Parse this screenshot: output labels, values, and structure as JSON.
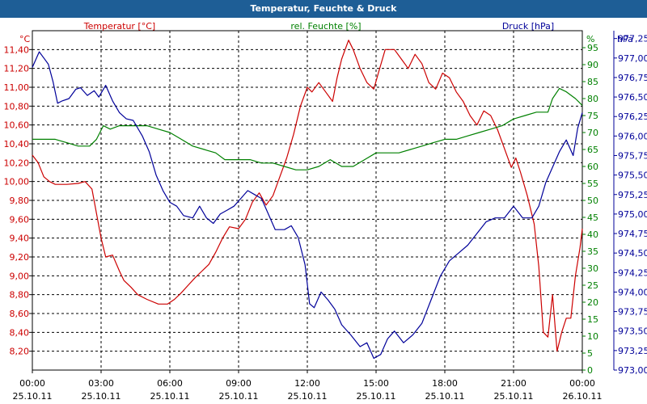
{
  "window_title": "Temperatur, Feuchte & Druck",
  "colors": {
    "title_bg": "#1e5e96",
    "temperature": "#cc0000",
    "humidity": "#008000",
    "pressure": "#000099"
  },
  "chart_data": {
    "type": "line",
    "title": "Temperatur, Feuchte & Druck",
    "x_labels": [
      {
        "time": "00:00",
        "date": "25.10.11"
      },
      {
        "time": "03:00",
        "date": "25.10.11"
      },
      {
        "time": "06:00",
        "date": "25.10.11"
      },
      {
        "time": "09:00",
        "date": "25.10.11"
      },
      {
        "time": "12:00",
        "date": "25.10.11"
      },
      {
        "time": "15:00",
        "date": "25.10.11"
      },
      {
        "time": "18:00",
        "date": "25.10.11"
      },
      {
        "time": "21:00",
        "date": "25.10.11"
      },
      {
        "time": "00:00",
        "date": "26.10.11"
      }
    ],
    "xlim_hours": [
      0,
      24
    ],
    "axes": {
      "temperature": {
        "label": "Temperatur [°C]",
        "unit": "°C",
        "ylim": [
          8.0,
          11.6
        ],
        "ticks": [
          "8,20",
          "8,40",
          "8,60",
          "8,80",
          "9,00",
          "9,20",
          "9,40",
          "9,60",
          "9,80",
          "10,00",
          "10,20",
          "10,40",
          "10,60",
          "10,80",
          "11,00",
          "11,20",
          "11,40"
        ]
      },
      "humidity": {
        "label": "rel. Feuchte [%]",
        "unit": "%",
        "ylim": [
          0,
          100
        ],
        "ticks": [
          "0",
          "5",
          "10",
          "15",
          "20",
          "25",
          "30",
          "35",
          "40",
          "45",
          "50",
          "55",
          "60",
          "65",
          "70",
          "75",
          "80",
          "85",
          "90",
          "95"
        ]
      },
      "pressure": {
        "label": "Druck [hPa]",
        "unit": "hPa",
        "ylim": [
          973.0,
          977.35
        ],
        "ticks": [
          "973,00",
          "973,25",
          "973,50",
          "973,75",
          "974,00",
          "974,25",
          "974,50",
          "974,75",
          "975,00",
          "975,25",
          "975,50",
          "975,75",
          "976,00",
          "976,25",
          "976,50",
          "976,75",
          "977,00",
          "977,25"
        ]
      }
    },
    "series": [
      {
        "name": "Temperatur [°C]",
        "axis": "temperature",
        "color": "#cc0000",
        "points": [
          [
            0,
            10.28
          ],
          [
            0.25,
            10.2
          ],
          [
            0.5,
            10.05
          ],
          [
            0.75,
            10.0
          ],
          [
            1.0,
            9.97
          ],
          [
            1.5,
            9.97
          ],
          [
            2.0,
            9.98
          ],
          [
            2.3,
            10.0
          ],
          [
            2.6,
            9.92
          ],
          [
            3.0,
            9.4
          ],
          [
            3.2,
            9.2
          ],
          [
            3.5,
            9.22
          ],
          [
            3.8,
            9.05
          ],
          [
            4.0,
            8.95
          ],
          [
            4.3,
            8.88
          ],
          [
            4.6,
            8.8
          ],
          [
            5.0,
            8.75
          ],
          [
            5.5,
            8.7
          ],
          [
            5.9,
            8.7
          ],
          [
            6.2,
            8.75
          ],
          [
            6.5,
            8.82
          ],
          [
            6.8,
            8.9
          ],
          [
            7.1,
            8.98
          ],
          [
            7.4,
            9.05
          ],
          [
            7.7,
            9.12
          ],
          [
            8.0,
            9.25
          ],
          [
            8.3,
            9.4
          ],
          [
            8.6,
            9.52
          ],
          [
            9.0,
            9.5
          ],
          [
            9.3,
            9.6
          ],
          [
            9.6,
            9.78
          ],
          [
            9.9,
            9.88
          ],
          [
            10.2,
            9.75
          ],
          [
            10.5,
            9.85
          ],
          [
            10.8,
            10.05
          ],
          [
            11.1,
            10.25
          ],
          [
            11.4,
            10.5
          ],
          [
            11.7,
            10.8
          ],
          [
            12.0,
            11.0
          ],
          [
            12.2,
            10.95
          ],
          [
            12.5,
            11.05
          ],
          [
            12.8,
            10.95
          ],
          [
            13.1,
            10.85
          ],
          [
            13.3,
            11.1
          ],
          [
            13.5,
            11.3
          ],
          [
            13.8,
            11.5
          ],
          [
            14.0,
            11.4
          ],
          [
            14.3,
            11.2
          ],
          [
            14.6,
            11.05
          ],
          [
            14.9,
            10.98
          ],
          [
            15.1,
            11.15
          ],
          [
            15.4,
            11.4
          ],
          [
            15.8,
            11.4
          ],
          [
            16.1,
            11.3
          ],
          [
            16.4,
            11.2
          ],
          [
            16.7,
            11.35
          ],
          [
            17.0,
            11.25
          ],
          [
            17.3,
            11.05
          ],
          [
            17.6,
            10.98
          ],
          [
            17.9,
            11.15
          ],
          [
            18.2,
            11.1
          ],
          [
            18.5,
            10.95
          ],
          [
            18.8,
            10.85
          ],
          [
            19.1,
            10.7
          ],
          [
            19.4,
            10.6
          ],
          [
            19.7,
            10.75
          ],
          [
            20.0,
            10.7
          ],
          [
            20.3,
            10.55
          ],
          [
            20.6,
            10.35
          ],
          [
            20.9,
            10.15
          ],
          [
            21.1,
            10.25
          ],
          [
            21.3,
            10.1
          ],
          [
            21.6,
            9.85
          ],
          [
            21.9,
            9.55
          ],
          [
            22.1,
            9.1
          ],
          [
            22.3,
            8.4
          ],
          [
            22.5,
            8.35
          ],
          [
            22.7,
            8.8
          ],
          [
            22.9,
            8.2
          ],
          [
            23.1,
            8.4
          ],
          [
            23.3,
            8.55
          ],
          [
            23.5,
            8.55
          ],
          [
            23.7,
            9.0
          ],
          [
            23.9,
            9.3
          ],
          [
            24.0,
            9.5
          ]
        ]
      },
      {
        "name": "rel. Feuchte [%]",
        "axis": "humidity",
        "color": "#008000",
        "points": [
          [
            0,
            68
          ],
          [
            1.0,
            68
          ],
          [
            1.5,
            67
          ],
          [
            2.0,
            66
          ],
          [
            2.5,
            66
          ],
          [
            2.8,
            68
          ],
          [
            3.1,
            72
          ],
          [
            3.4,
            71
          ],
          [
            3.8,
            72
          ],
          [
            4.5,
            72
          ],
          [
            5.0,
            72
          ],
          [
            5.5,
            71
          ],
          [
            6.0,
            70
          ],
          [
            6.5,
            68
          ],
          [
            7.0,
            66
          ],
          [
            7.5,
            65
          ],
          [
            8.0,
            64
          ],
          [
            8.4,
            62
          ],
          [
            9.0,
            62
          ],
          [
            9.5,
            62
          ],
          [
            10.0,
            61
          ],
          [
            10.5,
            61
          ],
          [
            11.0,
            60
          ],
          [
            11.5,
            59
          ],
          [
            12.0,
            59
          ],
          [
            12.5,
            60
          ],
          [
            13.0,
            62
          ],
          [
            13.5,
            60
          ],
          [
            14.0,
            60
          ],
          [
            14.5,
            62
          ],
          [
            15.0,
            64
          ],
          [
            15.5,
            64
          ],
          [
            16.0,
            64
          ],
          [
            16.5,
            65
          ],
          [
            17.0,
            66
          ],
          [
            17.5,
            67
          ],
          [
            18.0,
            68
          ],
          [
            18.5,
            68
          ],
          [
            19.0,
            69
          ],
          [
            19.5,
            70
          ],
          [
            20.0,
            71
          ],
          [
            20.5,
            72
          ],
          [
            21.0,
            74
          ],
          [
            21.5,
            75
          ],
          [
            22.0,
            76
          ],
          [
            22.5,
            76
          ],
          [
            22.7,
            80
          ],
          [
            23.0,
            83
          ],
          [
            23.3,
            82
          ],
          [
            23.7,
            80
          ],
          [
            24.0,
            78
          ]
        ]
      },
      {
        "name": "Druck [hPa]",
        "axis": "pressure",
        "color": "#000099",
        "points": [
          [
            0,
            976.88
          ],
          [
            0.3,
            977.08
          ],
          [
            0.5,
            977.0
          ],
          [
            0.7,
            976.92
          ],
          [
            0.9,
            976.7
          ],
          [
            1.1,
            976.42
          ],
          [
            1.3,
            976.45
          ],
          [
            1.6,
            976.48
          ],
          [
            1.9,
            976.6
          ],
          [
            2.1,
            976.62
          ],
          [
            2.4,
            976.52
          ],
          [
            2.7,
            976.58
          ],
          [
            2.9,
            976.5
          ],
          [
            3.2,
            976.65
          ],
          [
            3.5,
            976.45
          ],
          [
            3.8,
            976.3
          ],
          [
            4.1,
            976.22
          ],
          [
            4.4,
            976.2
          ],
          [
            4.8,
            976.0
          ],
          [
            5.1,
            975.8
          ],
          [
            5.4,
            975.5
          ],
          [
            5.7,
            975.3
          ],
          [
            6.0,
            975.15
          ],
          [
            6.3,
            975.1
          ],
          [
            6.6,
            974.98
          ],
          [
            7.0,
            974.95
          ],
          [
            7.3,
            975.1
          ],
          [
            7.6,
            974.95
          ],
          [
            7.9,
            974.88
          ],
          [
            8.2,
            975.0
          ],
          [
            8.5,
            975.05
          ],
          [
            8.8,
            975.1
          ],
          [
            9.1,
            975.2
          ],
          [
            9.4,
            975.3
          ],
          [
            9.7,
            975.25
          ],
          [
            10.0,
            975.2
          ],
          [
            10.3,
            975.0
          ],
          [
            10.6,
            974.8
          ],
          [
            11.0,
            974.8
          ],
          [
            11.3,
            974.85
          ],
          [
            11.6,
            974.7
          ],
          [
            11.9,
            974.35
          ],
          [
            12.1,
            973.85
          ],
          [
            12.3,
            973.8
          ],
          [
            12.6,
            974.0
          ],
          [
            12.9,
            973.9
          ],
          [
            13.2,
            973.78
          ],
          [
            13.5,
            973.58
          ],
          [
            13.9,
            973.45
          ],
          [
            14.3,
            973.3
          ],
          [
            14.6,
            973.35
          ],
          [
            14.9,
            973.15
          ],
          [
            15.2,
            973.2
          ],
          [
            15.5,
            973.4
          ],
          [
            15.8,
            973.5
          ],
          [
            16.2,
            973.35
          ],
          [
            16.6,
            973.45
          ],
          [
            17.0,
            973.6
          ],
          [
            17.4,
            973.9
          ],
          [
            17.8,
            974.2
          ],
          [
            18.2,
            974.4
          ],
          [
            18.6,
            974.5
          ],
          [
            19.0,
            974.6
          ],
          [
            19.4,
            974.75
          ],
          [
            19.8,
            974.9
          ],
          [
            20.2,
            974.95
          ],
          [
            20.6,
            974.95
          ],
          [
            21.0,
            975.1
          ],
          [
            21.4,
            974.95
          ],
          [
            21.8,
            974.95
          ],
          [
            22.1,
            975.1
          ],
          [
            22.4,
            975.4
          ],
          [
            22.7,
            975.6
          ],
          [
            23.0,
            975.8
          ],
          [
            23.3,
            975.95
          ],
          [
            23.6,
            975.75
          ],
          [
            23.8,
            976.1
          ],
          [
            24.0,
            976.3
          ]
        ]
      }
    ]
  }
}
